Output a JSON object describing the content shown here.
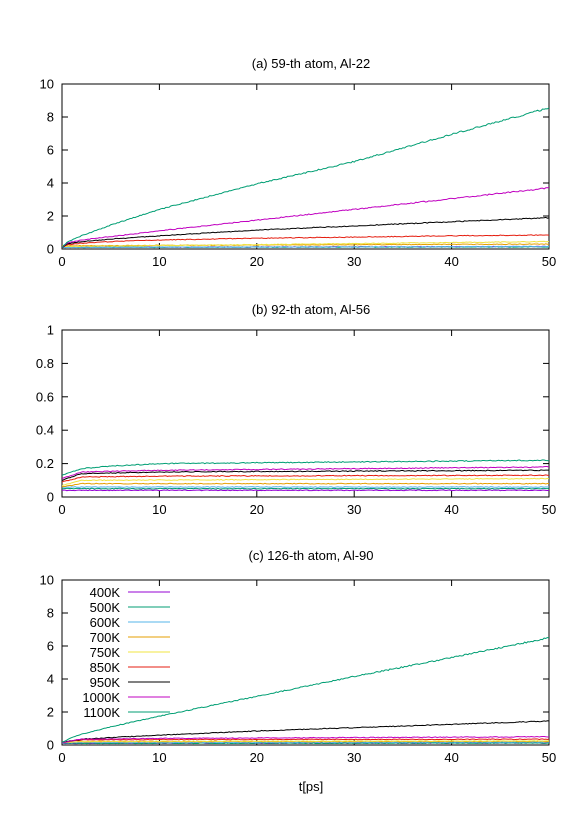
{
  "chart_data": [
    {
      "type": "line",
      "title": "(a) 59-th atom, Al-22",
      "xlabel": "",
      "ylabel": "",
      "xlim": [
        0,
        50
      ],
      "ylim": [
        0,
        10
      ],
      "xticks": [
        0,
        10,
        20,
        30,
        40,
        50
      ],
      "yticks": [
        0,
        2,
        4,
        6,
        8,
        10
      ],
      "grid": false,
      "legend": "none",
      "series": [
        {
          "name": "400K",
          "color": "#9400d3",
          "x": [
            0,
            50
          ],
          "y": [
            0.1,
            0.15
          ]
        },
        {
          "name": "500K",
          "color": "#009e73",
          "x": [
            0,
            50
          ],
          "y": [
            0.1,
            0.13
          ]
        },
        {
          "name": "600K",
          "color": "#56b4e9",
          "x": [
            0,
            50
          ],
          "y": [
            0.1,
            0.15
          ]
        },
        {
          "name": "700K",
          "color": "#e69f00",
          "x": [
            0,
            50
          ],
          "y": [
            0.2,
            0.3
          ]
        },
        {
          "name": "750K",
          "color": "#f0e442",
          "x": [
            0,
            50
          ],
          "y": [
            0.15,
            0.45
          ]
        },
        {
          "name": "850K",
          "color": "#e51e10",
          "x": [
            0,
            0.5,
            2,
            5,
            10,
            20,
            30,
            40,
            50
          ],
          "y": [
            0.1,
            0.25,
            0.35,
            0.45,
            0.55,
            0.65,
            0.72,
            0.8,
            0.85
          ]
        },
        {
          "name": "950K",
          "color": "#000000",
          "x": [
            0,
            0.5,
            2,
            5,
            10,
            20,
            30,
            40,
            50
          ],
          "y": [
            0.1,
            0.3,
            0.45,
            0.6,
            0.8,
            1.15,
            1.4,
            1.65,
            1.9
          ]
        },
        {
          "name": "1000K",
          "color": "#c000c0",
          "x": [
            0,
            0.5,
            2,
            5,
            10,
            20,
            30,
            40,
            50
          ],
          "y": [
            0.1,
            0.35,
            0.55,
            0.75,
            1.1,
            1.75,
            2.4,
            3.05,
            3.7
          ]
        },
        {
          "name": "1100K",
          "color": "#009e73",
          "x": [
            0,
            0.5,
            2,
            5,
            10,
            20,
            30,
            40,
            50
          ],
          "y": [
            0.1,
            0.4,
            0.8,
            1.45,
            2.4,
            3.95,
            5.3,
            6.95,
            8.55
          ]
        }
      ]
    },
    {
      "type": "line",
      "title": "(b) 92-th atom, Al-56",
      "xlabel": "",
      "ylabel": "",
      "xlim": [
        0,
        50
      ],
      "ylim": [
        0,
        1
      ],
      "xticks": [
        0,
        10,
        20,
        30,
        40,
        50
      ],
      "yticks": [
        "0",
        "0.2",
        "0.4",
        "0.6",
        "0.8",
        "1"
      ],
      "grid": false,
      "legend": "none",
      "series": [
        {
          "name": "400K",
          "color": "#9400d3",
          "x": [
            0,
            50
          ],
          "y": [
            0.04,
            0.04
          ]
        },
        {
          "name": "500K",
          "color": "#009e73",
          "x": [
            0,
            50
          ],
          "y": [
            0.05,
            0.05
          ]
        },
        {
          "name": "600K",
          "color": "#56b4e9",
          "x": [
            0,
            50
          ],
          "y": [
            0.06,
            0.06
          ]
        },
        {
          "name": "700K",
          "color": "#e69f00",
          "x": [
            0,
            2,
            50
          ],
          "y": [
            0.06,
            0.08,
            0.08
          ]
        },
        {
          "name": "750K",
          "color": "#f0e442",
          "x": [
            0,
            2,
            50
          ],
          "y": [
            0.07,
            0.1,
            0.11
          ]
        },
        {
          "name": "850K",
          "color": "#e51e10",
          "x": [
            0,
            2,
            10,
            50
          ],
          "y": [
            0.09,
            0.12,
            0.125,
            0.13
          ]
        },
        {
          "name": "950K",
          "color": "#000000",
          "x": [
            0,
            2,
            10,
            50
          ],
          "y": [
            0.1,
            0.14,
            0.15,
            0.16
          ]
        },
        {
          "name": "1000K",
          "color": "#c000c0",
          "x": [
            0,
            2,
            10,
            50
          ],
          "y": [
            0.11,
            0.15,
            0.16,
            0.18
          ]
        },
        {
          "name": "1100K",
          "color": "#009e73",
          "x": [
            0,
            2,
            5,
            10,
            30,
            50
          ],
          "y": [
            0.13,
            0.17,
            0.185,
            0.2,
            0.21,
            0.22
          ]
        }
      ]
    },
    {
      "type": "line",
      "title": "(c) 126-th atom, Al-90",
      "xlabel": "t[ps]",
      "ylabel": "",
      "xlim": [
        0,
        50
      ],
      "ylim": [
        0,
        10
      ],
      "xticks": [
        0,
        10,
        20,
        30,
        40,
        50
      ],
      "yticks": [
        0,
        2,
        4,
        6,
        8,
        10
      ],
      "grid": false,
      "legend": "top-left",
      "series": [
        {
          "name": "400K",
          "color": "#9400d3",
          "x": [
            0,
            50
          ],
          "y": [
            0.1,
            0.12
          ]
        },
        {
          "name": "500K",
          "color": "#009e73",
          "x": [
            0,
            50
          ],
          "y": [
            0.1,
            0.12
          ]
        },
        {
          "name": "600K",
          "color": "#56b4e9",
          "x": [
            0,
            50
          ],
          "y": [
            0.15,
            0.18
          ]
        },
        {
          "name": "700K",
          "color": "#e69f00",
          "x": [
            0,
            2,
            50
          ],
          "y": [
            0.15,
            0.2,
            0.22
          ]
        },
        {
          "name": "750K",
          "color": "#f0e442",
          "x": [
            0,
            2,
            50
          ],
          "y": [
            0.15,
            0.22,
            0.25
          ]
        },
        {
          "name": "850K",
          "color": "#e51e10",
          "x": [
            0,
            2,
            10,
            50
          ],
          "y": [
            0.15,
            0.3,
            0.33,
            0.35
          ]
        },
        {
          "name": "950K",
          "color": "#000000",
          "x": [
            0,
            2,
            5,
            10,
            20,
            30,
            40,
            50
          ],
          "y": [
            0.15,
            0.35,
            0.45,
            0.6,
            0.85,
            1.05,
            1.25,
            1.45
          ]
        },
        {
          "name": "1000K",
          "color": "#c000c0",
          "x": [
            0,
            2,
            10,
            30,
            50
          ],
          "y": [
            0.15,
            0.35,
            0.4,
            0.45,
            0.5
          ]
        },
        {
          "name": "1100K",
          "color": "#009e73",
          "x": [
            0,
            1,
            2,
            5,
            10,
            20,
            30,
            40,
            50
          ],
          "y": [
            0.15,
            0.45,
            0.65,
            1.1,
            1.75,
            2.95,
            4.15,
            5.3,
            6.5
          ]
        }
      ]
    }
  ]
}
